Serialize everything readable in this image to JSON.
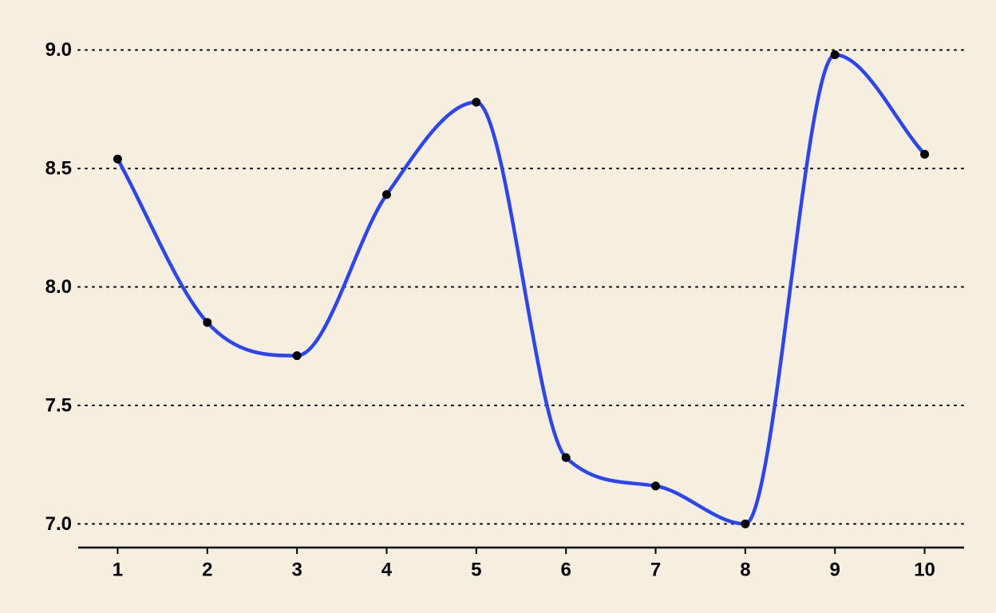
{
  "chart_data": {
    "type": "line",
    "title": "",
    "xlabel": "",
    "ylabel": "",
    "x": [
      1,
      2,
      3,
      4,
      5,
      6,
      7,
      8,
      9,
      10
    ],
    "series": [
      {
        "values": [
          8.54,
          7.85,
          7.71,
          8.39,
          8.78,
          7.28,
          7.16,
          7.0,
          8.98,
          8.56
        ],
        "color": "#2b45f5"
      }
    ],
    "xlim": [
      0.56,
      10.44
    ],
    "ylim": [
      6.9,
      9.1
    ],
    "x_ticks": [
      "1",
      "2",
      "3",
      "4",
      "5",
      "6",
      "7",
      "8",
      "9",
      "10"
    ],
    "y_ticks": [
      "7.0",
      "7.5",
      "8.0",
      "8.5",
      "9.0"
    ],
    "y_tick_values": [
      7.0,
      7.5,
      8.0,
      8.5,
      9.0
    ],
    "grid": "horizontal dotted",
    "line_style": "smooth",
    "point_color": "#000000",
    "background_color": "#f6efdf",
    "legend": "none"
  }
}
